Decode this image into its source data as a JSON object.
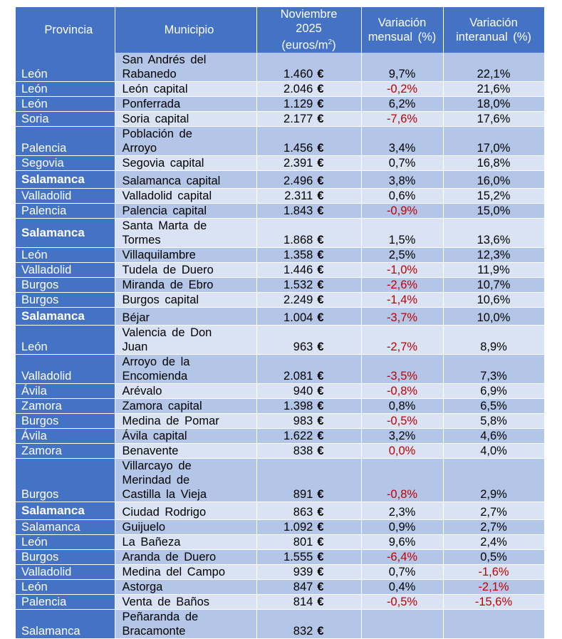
{
  "header": {
    "provincia": "Provincia",
    "municipio": "Municipio",
    "precio_l1": "Noviembre",
    "precio_l2": "2025",
    "precio_l3": "(euros/m",
    "precio_sup": "2",
    "precio_close": ")",
    "mensual_l1": "Variación",
    "mensual_l2": "mensual (%)",
    "interanual_l1": "Variación",
    "interanual_l2": "interanual (%)"
  },
  "currency_symbol": "€",
  "colors": {
    "header": "#4472c4",
    "row_dark": "#b4c6e7",
    "row_light": "#dae3f3",
    "negative": "#c00000"
  },
  "rows": [
    {
      "provincia": "León",
      "municipio": "San Andrés del\nRabanedo",
      "precio": "1.460",
      "mensual": "9,7%",
      "interanual": "22,1%"
    },
    {
      "provincia": "León",
      "municipio": "León capital",
      "precio": "2.046",
      "mensual": "-0,2%",
      "interanual": "21,6%"
    },
    {
      "provincia": "León",
      "municipio": "Ponferrada",
      "precio": "1.129",
      "mensual": "6,2%",
      "interanual": "18,0%"
    },
    {
      "provincia": "Soria",
      "municipio": "Soria capital",
      "precio": "2.177",
      "mensual": "-7,6%",
      "interanual": "17,6%"
    },
    {
      "provincia": "Palencia",
      "municipio": "Población de\nArroyo",
      "precio": "1.456",
      "mensual": "3,4%",
      "interanual": "17,0%"
    },
    {
      "provincia": "Segovia",
      "municipio": "Segovia capital",
      "precio": "2.391",
      "mensual": "0,7%",
      "interanual": "16,8%"
    },
    {
      "provincia": "Salamanca",
      "bold": true,
      "municipio": "Salamanca capital",
      "precio": "2.496",
      "mensual": "3,8%",
      "interanual": "16,0%"
    },
    {
      "provincia": "Valladolid",
      "municipio": "Valladolid capital",
      "precio": "2.311",
      "mensual": "0,6%",
      "interanual": "15,2%"
    },
    {
      "provincia": "Palencia",
      "municipio": "Palencia capital",
      "precio": "1.843",
      "mensual": "-0,9%",
      "interanual": "15,0%"
    },
    {
      "provincia": "Salamanca",
      "bold": true,
      "municipio": "Santa Marta de\nTormes",
      "precio": "1.868",
      "mensual": "1,5%",
      "interanual": "13,6%"
    },
    {
      "provincia": "León",
      "municipio": "Villaquilambre",
      "precio": "1.358",
      "mensual": "2,5%",
      "interanual": "12,3%"
    },
    {
      "provincia": "Valladolid",
      "municipio": "Tudela de Duero",
      "precio": "1.446",
      "mensual": "-1,0%",
      "interanual": "11,9%"
    },
    {
      "provincia": "Burgos",
      "municipio": "Miranda de Ebro",
      "precio": "1.532",
      "mensual": "-2,6%",
      "interanual": "10,7%"
    },
    {
      "provincia": "Burgos",
      "municipio": "Burgos capital",
      "precio": "2.249",
      "mensual": "-1,4%",
      "interanual": "10,6%"
    },
    {
      "provincia": "Salamanca",
      "bold": true,
      "municipio": "Béjar",
      "precio": "1.004",
      "mensual": "-3,7%",
      "interanual": "10,0%"
    },
    {
      "provincia": "León",
      "municipio": "Valencia de Don\nJuan",
      "precio": "963",
      "mensual": "-2,7%",
      "interanual": "8,9%"
    },
    {
      "provincia": "Valladolid",
      "municipio": "Arroyo de la\nEncomienda",
      "precio": "2.081",
      "mensual": "-3,5%",
      "interanual": "7,3%"
    },
    {
      "provincia": "Ávila",
      "municipio": "Arévalo",
      "precio": "940",
      "mensual": "-0,8%",
      "interanual": "6,9%"
    },
    {
      "provincia": "Zamora",
      "municipio": "Zamora capital",
      "precio": "1.398",
      "mensual": "0,8%",
      "interanual": "6,5%"
    },
    {
      "provincia": "Burgos",
      "municipio": "Medina de Pomar",
      "precio": "983",
      "mensual": "-0,5%",
      "interanual": "5,8%"
    },
    {
      "provincia": "Ávila",
      "municipio": "Ávila capital",
      "precio": "1.622",
      "mensual": "3,2%",
      "interanual": "4,6%"
    },
    {
      "provincia": "Zamora",
      "municipio": "Benavente",
      "precio": "838",
      "mensual": "0,0%",
      "interanual": "4,0%",
      "mensual_red": true
    },
    {
      "provincia": "Burgos",
      "municipio": "Villarcayo de\nMerindad de\nCastilla la Vieja",
      "precio": "891",
      "mensual": "-0,8%",
      "interanual": "2,9%"
    },
    {
      "provincia": "Salamanca",
      "bold": true,
      "municipio": "Ciudad Rodrigo",
      "precio": "863",
      "mensual": "2,3%",
      "interanual": "2,7%"
    },
    {
      "provincia": "Salamanca",
      "municipio": "Guijuelo",
      "precio": "1.092",
      "mensual": "0,9%",
      "interanual": "2,7%"
    },
    {
      "provincia": "León",
      "municipio": "La Bañeza",
      "precio": "801",
      "mensual": "9,6%",
      "interanual": "2,4%"
    },
    {
      "provincia": "Burgos",
      "municipio": "Aranda de Duero",
      "precio": "1.555",
      "mensual": "-6,4%",
      "interanual": "0,5%"
    },
    {
      "provincia": "Valladolid",
      "municipio": "Medina del Campo",
      "precio": "939",
      "mensual": "0,7%",
      "interanual": "-1,6%"
    },
    {
      "provincia": "León",
      "municipio": "Astorga",
      "precio": "847",
      "mensual": "0,4%",
      "interanual": "-2,1%"
    },
    {
      "provincia": "Palencia",
      "municipio": "Venta de Baños",
      "precio": "814",
      "mensual": "-0,5%",
      "interanual": "-15,6%"
    },
    {
      "provincia": "Salamanca",
      "municipio": "Peñaranda de\nBracamonte",
      "precio": "832",
      "mensual": "",
      "interanual": ""
    }
  ]
}
